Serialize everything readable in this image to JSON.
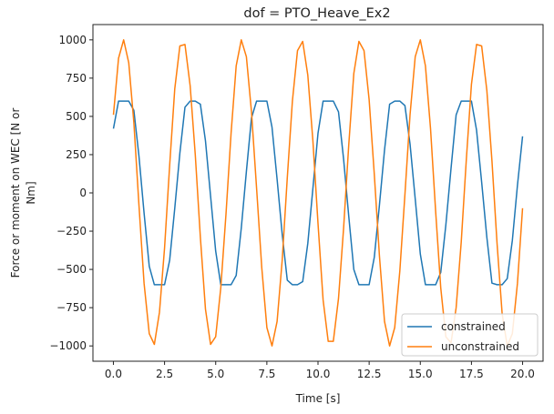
{
  "chart_data": {
    "type": "line",
    "title": "dof = PTO_Heave_Ex2",
    "xlabel": "Time [s]",
    "ylabel_line1": "Force or moment on WEC [N or",
    "ylabel_line2": "Nm]",
    "xlim": [
      -1.0,
      21.0
    ],
    "ylim": [
      -1100,
      1100
    ],
    "xticks": [
      0.0,
      2.5,
      5.0,
      7.5,
      10.0,
      12.5,
      15.0,
      17.5,
      20.0
    ],
    "xtick_labels": [
      "0.0",
      "2.5",
      "5.0",
      "7.5",
      "10.0",
      "12.5",
      "15.0",
      "17.5",
      "20.0"
    ],
    "yticks": [
      -1000,
      -750,
      -500,
      -250,
      0,
      250,
      500,
      750,
      1000
    ],
    "ytick_labels": [
      "−1000",
      "−750",
      "−500",
      "−250",
      "0",
      "250",
      "500",
      "750",
      "1000"
    ],
    "grid": false,
    "legend_position": "lower-right",
    "series": [
      {
        "name": "constrained",
        "color": "#1f77b4",
        "x": [
          0.0,
          0.25,
          0.5,
          0.75,
          1.0,
          1.25,
          1.5,
          1.75,
          2.0,
          2.25,
          2.5,
          2.75,
          3.0,
          3.25,
          3.5,
          3.75,
          4.0,
          4.25,
          4.5,
          4.75,
          5.0,
          5.25,
          5.5,
          5.75,
          6.0,
          6.25,
          6.5,
          6.75,
          7.0,
          7.25,
          7.5,
          7.75,
          8.0,
          8.25,
          8.5,
          8.75,
          9.0,
          9.25,
          9.5,
          9.75,
          10.0,
          10.25,
          10.5,
          10.75,
          11.0,
          11.25,
          11.5,
          11.75,
          12.0,
          12.25,
          12.5,
          12.75,
          13.0,
          13.25,
          13.5,
          13.75,
          14.0,
          14.25,
          14.5,
          14.75,
          15.0,
          15.25,
          15.5,
          15.75,
          16.0,
          16.25,
          16.5,
          16.75,
          17.0,
          17.25,
          17.5,
          17.75,
          18.0,
          18.25,
          18.5,
          18.75,
          19.0,
          19.25,
          19.5,
          19.75,
          20.0
        ],
        "values": [
          420,
          600,
          600,
          600,
          540,
          240,
          -130,
          -480,
          -600,
          -600,
          -600,
          -440,
          -100,
          260,
          560,
          600,
          600,
          580,
          340,
          -20,
          -380,
          -600,
          -600,
          -600,
          -540,
          -230,
          140,
          490,
          600,
          600,
          600,
          430,
          90,
          -270,
          -570,
          -600,
          -600,
          -580,
          -330,
          30,
          390,
          600,
          600,
          600,
          530,
          220,
          -150,
          -500,
          -600,
          -600,
          -600,
          -420,
          -80,
          280,
          580,
          600,
          600,
          570,
          320,
          -40,
          -400,
          -600,
          -600,
          -600,
          -520,
          -210,
          160,
          510,
          600,
          600,
          600,
          410,
          70,
          -290,
          -590,
          -600,
          -600,
          -560,
          -310,
          50,
          370
        ]
      },
      {
        "name": "unconstrained",
        "color": "#ff7f0e",
        "x": [
          0.0,
          0.25,
          0.5,
          0.75,
          1.0,
          1.25,
          1.5,
          1.75,
          2.0,
          2.25,
          2.5,
          2.75,
          3.0,
          3.25,
          3.5,
          3.75,
          4.0,
          4.25,
          4.5,
          4.75,
          5.0,
          5.25,
          5.5,
          5.75,
          6.0,
          6.25,
          6.5,
          6.75,
          7.0,
          7.25,
          7.5,
          7.75,
          8.0,
          8.25,
          8.5,
          8.75,
          9.0,
          9.25,
          9.5,
          9.75,
          10.0,
          10.25,
          10.5,
          10.75,
          11.0,
          11.25,
          11.5,
          11.75,
          12.0,
          12.25,
          12.5,
          12.75,
          13.0,
          13.25,
          13.5,
          13.75,
          14.0,
          14.25,
          14.5,
          14.75,
          15.0,
          15.25,
          15.5,
          15.75,
          16.0,
          16.25,
          16.5,
          16.75,
          17.0,
          17.25,
          17.5,
          17.75,
          18.0,
          18.25,
          18.5,
          18.75,
          19.0,
          19.25,
          19.5,
          19.75,
          20.0
        ],
        "values": [
          510,
          880,
          1000,
          850,
          460,
          -80,
          -590,
          -920,
          -990,
          -780,
          -360,
          180,
          680,
          960,
          970,
          700,
          250,
          -290,
          -760,
          -990,
          -940,
          -620,
          -140,
          390,
          830,
          1000,
          890,
          530,
          30,
          -490,
          -880,
          -1000,
          -840,
          -440,
          100,
          600,
          930,
          990,
          770,
          340,
          -200,
          -700,
          -970,
          -970,
          -690,
          -230,
          310,
          780,
          990,
          930,
          610,
          120,
          -410,
          -840,
          -1000,
          -880,
          -510,
          -10,
          510,
          890,
          1000,
          830,
          420,
          -120,
          -620,
          -940,
          -980,
          -750,
          -320,
          220,
          710,
          970,
          960,
          670,
          210,
          -330,
          -790,
          -1000,
          -920,
          -590,
          -100
        ]
      }
    ]
  }
}
